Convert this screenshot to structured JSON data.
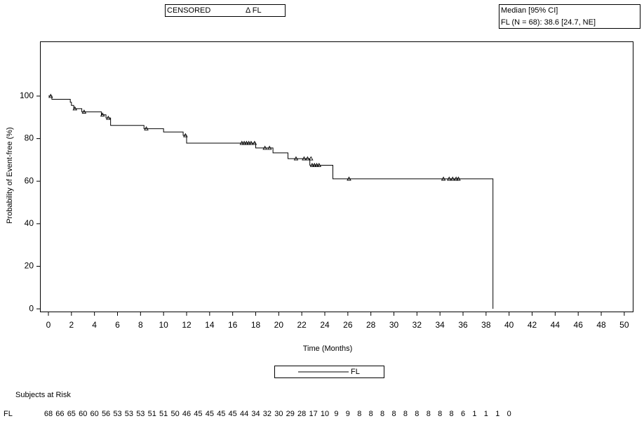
{
  "chart_data": {
    "type": "step",
    "xlabel": "Time (Months)",
    "ylabel": "Probability of Event-free (%)",
    "xlim": [
      -0.73,
      50.8
    ],
    "ylim": [
      -1.6,
      125.7
    ],
    "xticks": [
      0,
      2,
      4,
      6,
      8,
      10,
      12,
      14,
      16,
      18,
      20,
      22,
      24,
      26,
      28,
      30,
      32,
      34,
      36,
      38,
      40,
      42,
      44,
      46,
      48,
      50
    ],
    "yticks": [
      0,
      20,
      40,
      60,
      80,
      100
    ],
    "series": [
      {
        "name": "FL",
        "color": "#000000",
        "x": [
          0,
          0.3,
          1.9,
          2.0,
          2.2,
          2.9,
          4.6,
          5.0,
          5.4,
          8.3,
          10.0,
          11.7,
          12.0,
          18.0,
          19.5,
          20.8,
          22.7,
          24.7,
          38.6
        ],
        "values": [
          100,
          98.5,
          97.1,
          95.6,
          94.1,
          92.6,
          91.2,
          89.7,
          86.2,
          84.7,
          83.1,
          81.5,
          77.9,
          75.6,
          73.3,
          70.6,
          67.5,
          61.1,
          0
        ]
      }
    ],
    "censored": {
      "x": [
        0.2,
        2.3,
        3.1,
        4.7,
        5.2,
        8.5,
        11.9,
        16.8,
        17.0,
        17.2,
        17.4,
        17.6,
        17.9,
        18.8,
        19.2,
        21.5,
        22.2,
        22.5,
        22.8,
        22.9,
        23.1,
        23.3,
        23.5,
        26.1,
        34.3,
        34.8,
        35.1,
        35.4,
        35.6
      ],
      "values": [
        100,
        94.1,
        92.6,
        91.2,
        89.7,
        84.7,
        81.5,
        77.9,
        77.9,
        77.9,
        77.9,
        77.9,
        77.9,
        75.6,
        75.6,
        70.6,
        70.6,
        70.6,
        70.6,
        67.5,
        67.5,
        67.5,
        67.5,
        61.1,
        61.1,
        61.1,
        61.1,
        61.1,
        61.1
      ]
    },
    "censor_legend": [
      "CENSORED",
      "Δ FL"
    ],
    "median_box": [
      "Median [95% CI]",
      "FL (N = 68): 38.6 [24.7, NE]"
    ],
    "risk_table": {
      "title": "Subjects at Risk",
      "values": [
        68,
        66,
        65,
        60,
        60,
        56,
        53,
        53,
        53,
        51,
        51,
        50,
        46,
        45,
        45,
        45,
        45,
        44,
        34,
        32,
        30,
        29,
        28,
        17,
        10,
        9,
        9,
        8,
        8,
        8,
        8,
        8,
        8,
        8,
        8,
        8,
        6,
        1,
        1,
        1,
        0
      ]
    }
  }
}
